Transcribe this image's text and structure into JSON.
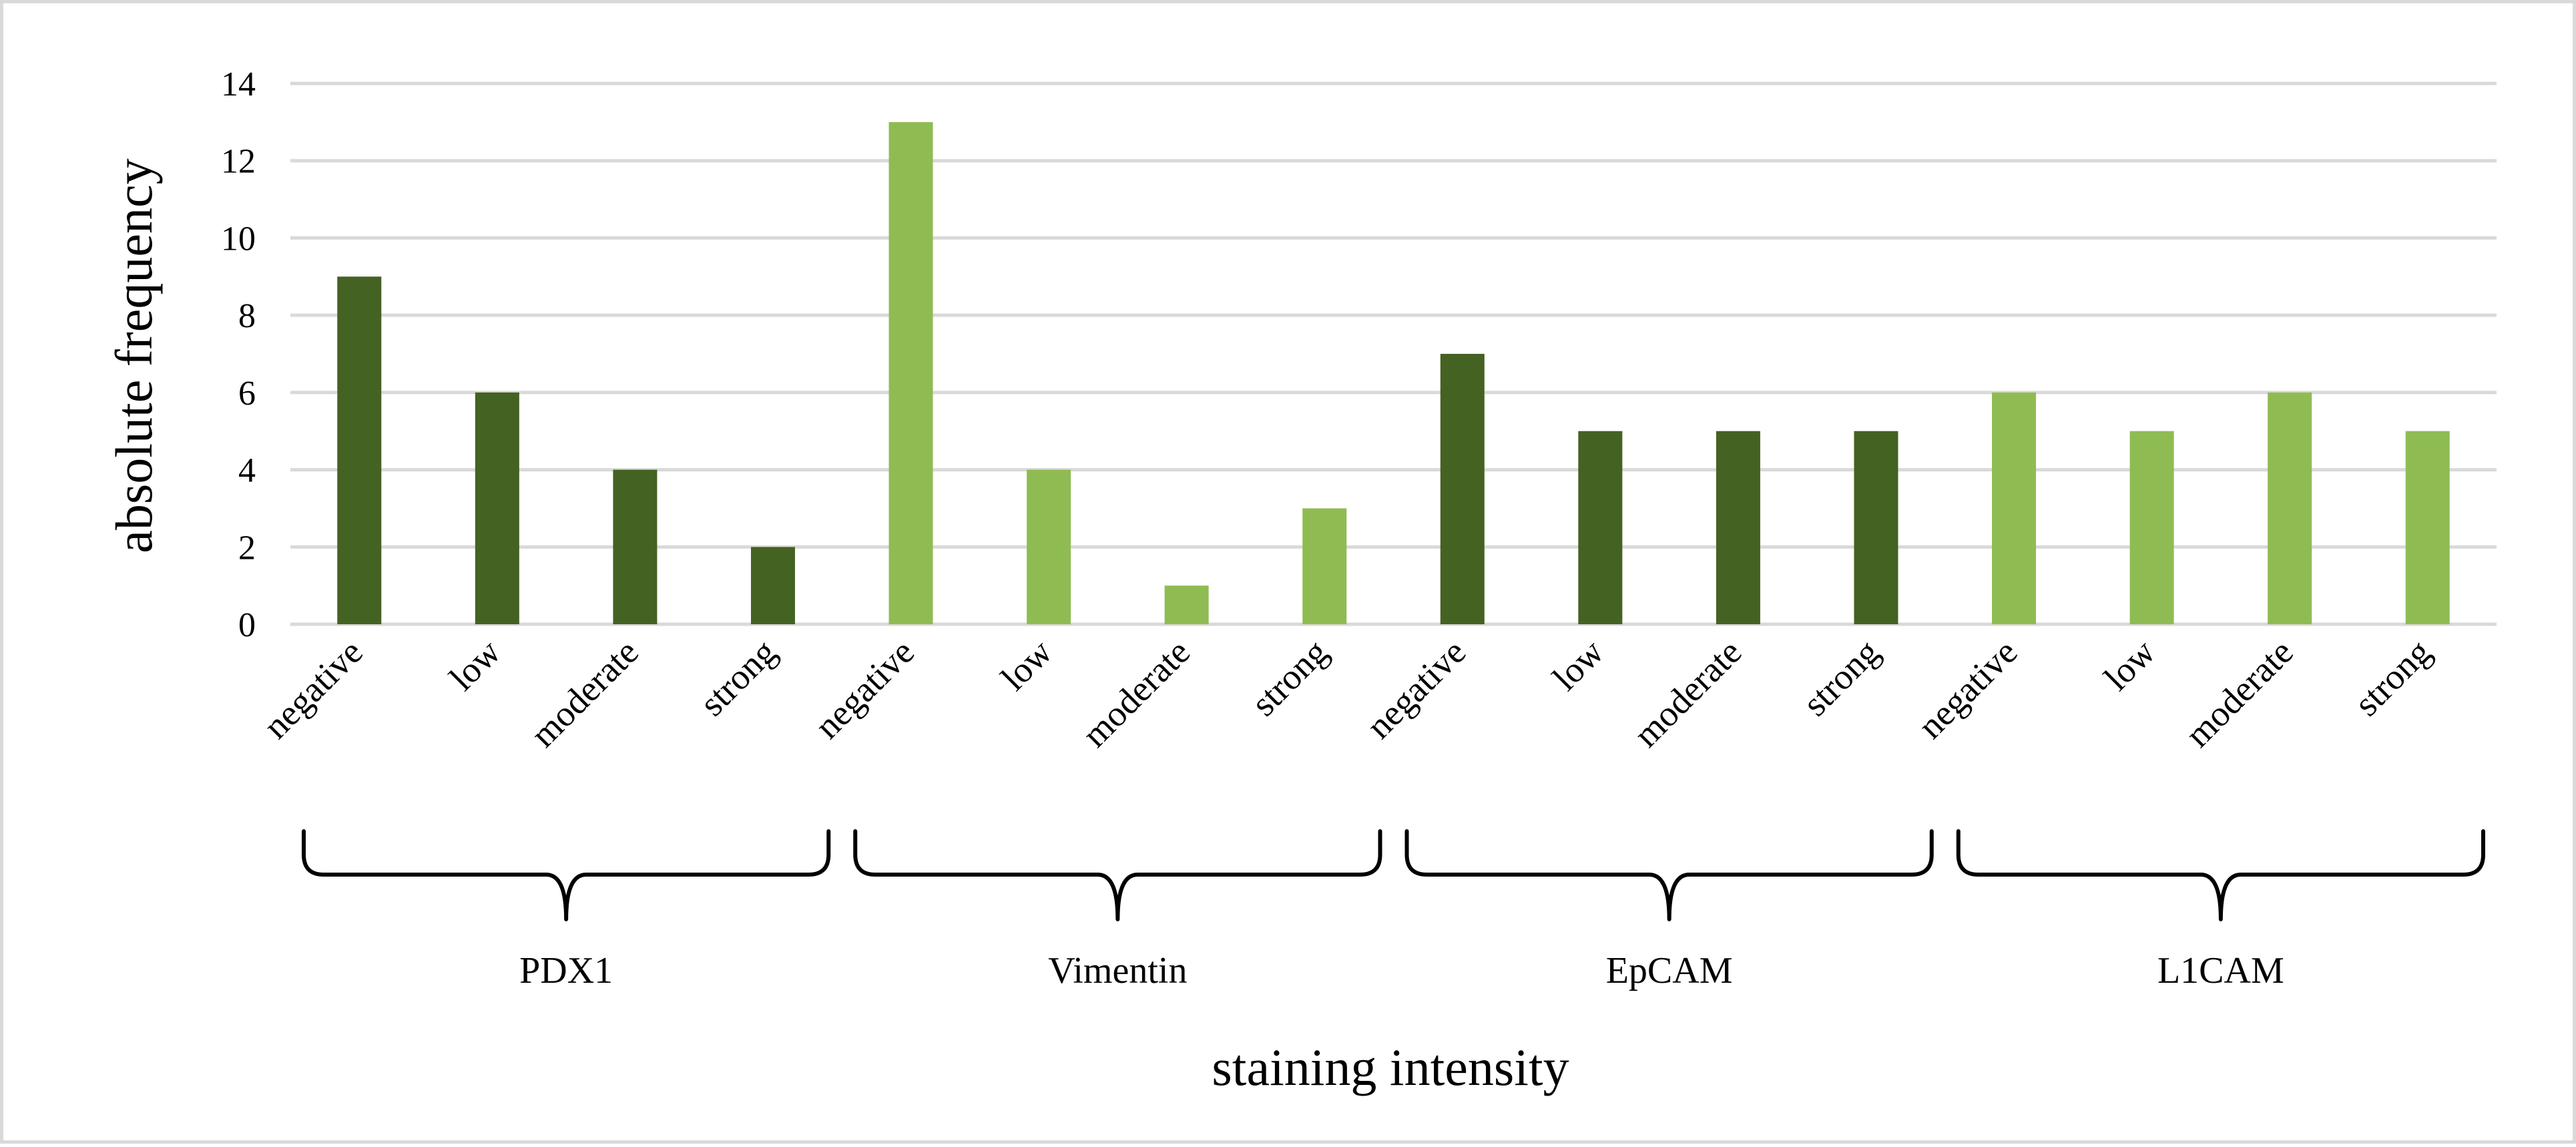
{
  "chart_data": {
    "type": "bar",
    "title": "",
    "xlabel": "staining intensity",
    "ylabel": "absolute frequency",
    "ylim": [
      0,
      14
    ],
    "yticks": [
      0,
      2,
      4,
      6,
      8,
      10,
      12,
      14
    ],
    "grid": true,
    "legend": "none",
    "categories": [
      "negative",
      "low",
      "moderate",
      "strong"
    ],
    "groups": [
      {
        "name": "PDX1",
        "color": "#446221",
        "values": [
          9,
          6,
          4,
          2
        ]
      },
      {
        "name": "Vimentin",
        "color": "#8fbc52",
        "values": [
          13,
          4,
          1,
          3
        ]
      },
      {
        "name": "EpCAM",
        "color": "#446221",
        "values": [
          7,
          5,
          5,
          5
        ]
      },
      {
        "name": "L1CAM",
        "color": "#8fbc52",
        "values": [
          6,
          5,
          6,
          5
        ]
      }
    ]
  },
  "colors": {
    "gridline": "#d9d9d9",
    "frame": "#d9d9d9",
    "bracket": "#000000"
  }
}
